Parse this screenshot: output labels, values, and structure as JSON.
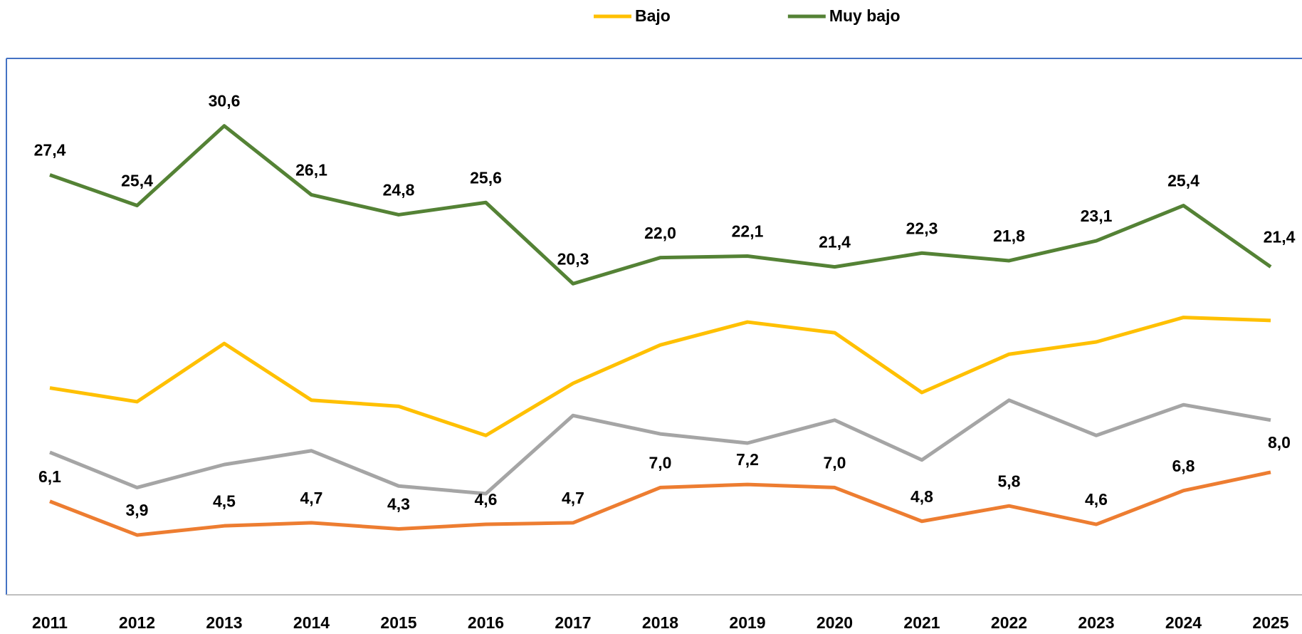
{
  "chart_data": {
    "type": "line",
    "categories": [
      "2011",
      "2012",
      "2013",
      "2014",
      "2015",
      "2016",
      "2017",
      "2018",
      "2019",
      "2020",
      "2021",
      "2022",
      "2023",
      "2024",
      "2025"
    ],
    "series": [
      {
        "name": "Bajo",
        "color": "#ffc000",
        "values": [
          13.5,
          12.6,
          16.4,
          12.7,
          12.3,
          10.4,
          13.8,
          16.3,
          17.8,
          17.1,
          13.2,
          15.7,
          16.5,
          18.1,
          17.9
        ]
      },
      {
        "name": "Muy bajo",
        "color": "#548235",
        "values": [
          27.4,
          25.4,
          30.6,
          26.1,
          24.8,
          25.6,
          20.3,
          22.0,
          22.1,
          21.4,
          22.3,
          21.8,
          23.1,
          25.4,
          21.4
        ],
        "value_labels": [
          "27,4",
          "25,4",
          "30,6",
          "26,1",
          "24,8",
          "25,6",
          "20,3",
          "22,0",
          "22,1",
          "21,4",
          "22,3",
          "21,8",
          "23,1",
          "25,4",
          "21,4"
        ]
      },
      {
        "color": "#a5a5a5",
        "values": [
          9.3,
          7.0,
          8.5,
          9.4,
          7.1,
          6.6,
          11.7,
          10.5,
          9.9,
          11.4,
          8.8,
          12.7,
          10.4,
          12.4,
          11.4
        ]
      },
      {
        "color": "#ed7d31",
        "values": [
          6.1,
          3.9,
          4.5,
          4.7,
          4.3,
          4.6,
          4.7,
          7.0,
          7.2,
          7.0,
          4.8,
          5.8,
          4.6,
          6.8,
          8.0
        ],
        "value_labels": [
          "6,1",
          "3,9",
          "4,5",
          "4,7",
          "4,3",
          "4,6",
          "4,7",
          "7,0",
          "7,2",
          "7,0",
          "4,8",
          "5,8",
          "4,6",
          "6,8",
          "8,0"
        ]
      }
    ],
    "ylim": [
      0,
      35
    ],
    "legend": "top"
  }
}
